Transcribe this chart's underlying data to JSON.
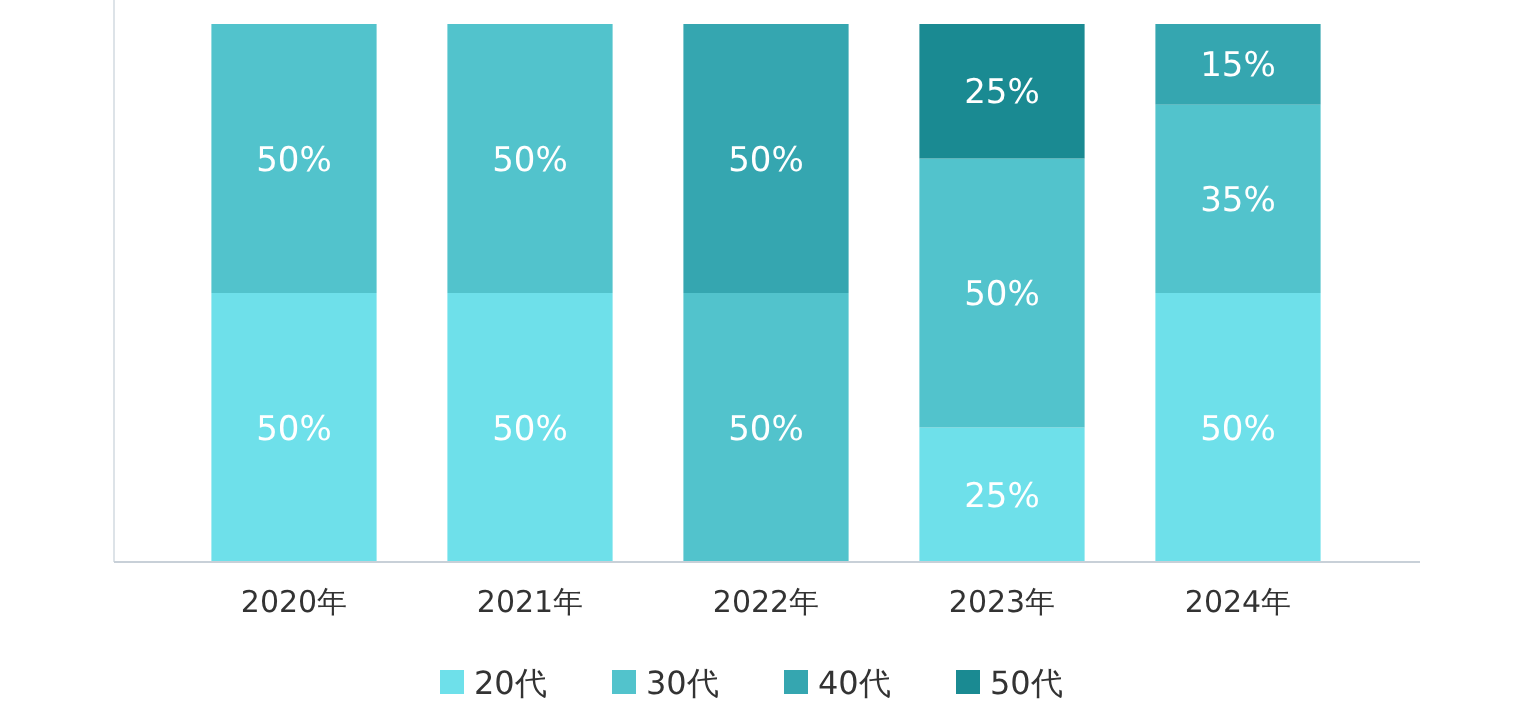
{
  "chart_data": {
    "type": "bar",
    "stacked": true,
    "categories": [
      "2020年",
      "2021年",
      "2022年",
      "2023年",
      "2024年"
    ],
    "legend": "bottom",
    "series": [
      {
        "name": "20代",
        "color": "#6ee0ea",
        "values": [
          50,
          50,
          null,
          25,
          50
        ],
        "value_labels": [
          "50%",
          "50%",
          null,
          "25%",
          "50%"
        ]
      },
      {
        "name": "30代",
        "color": "#52c3cc",
        "values": [
          50,
          50,
          50,
          50,
          35
        ],
        "value_labels": [
          "50%",
          "50%",
          "50%",
          "50%",
          "35%"
        ]
      },
      {
        "name": "40代",
        "color": "#35a6b0",
        "values": [
          null,
          null,
          50,
          null,
          15
        ],
        "value_labels": [
          null,
          null,
          "50%",
          null,
          "15%"
        ]
      },
      {
        "name": "50代",
        "color": "#1a8a92",
        "values": [
          null,
          null,
          null,
          25,
          null
        ],
        "value_labels": [
          null,
          null,
          null,
          "25%",
          null
        ]
      }
    ]
  }
}
